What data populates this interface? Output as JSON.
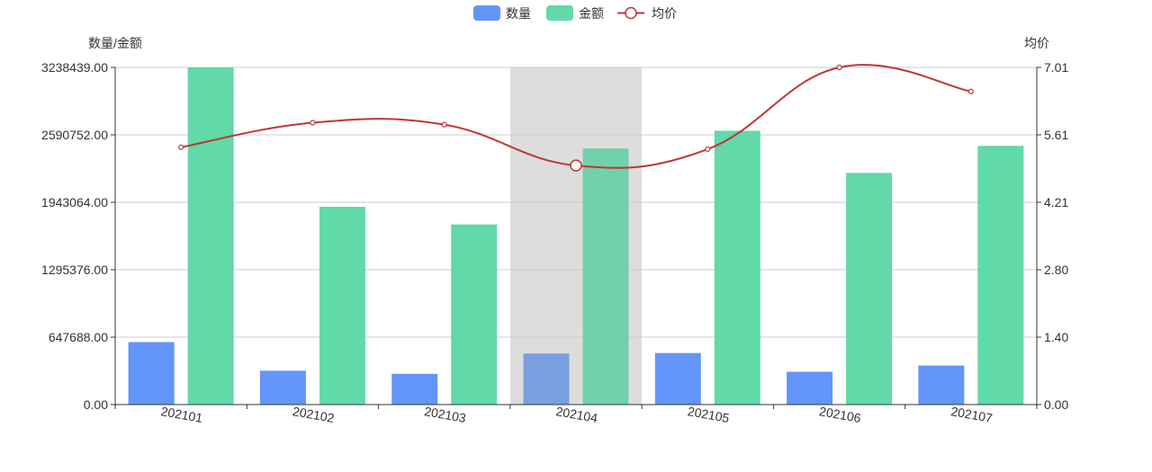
{
  "chart_data": {
    "type": "bar",
    "categories": [
      "202101",
      "202102",
      "202103",
      "202104",
      "202105",
      "202106",
      "202107"
    ],
    "series": [
      {
        "name": "数量",
        "type": "bar",
        "axis": "left",
        "color": "#6495fb",
        "values": [
          600000,
          325000,
          295000,
          490000,
          495000,
          315000,
          375000
        ]
      },
      {
        "name": "金额",
        "type": "bar",
        "axis": "left",
        "color": "#61d9a8",
        "values": [
          3238439,
          1900000,
          1730000,
          2460000,
          2630000,
          2225000,
          2485000
        ]
      },
      {
        "name": "均价",
        "type": "line",
        "axis": "right",
        "color": "#c23531",
        "smooth": true,
        "values": [
          5.35,
          5.86,
          5.82,
          4.97,
          5.31,
          7.01,
          6.51
        ]
      }
    ],
    "yAxisLeft": {
      "name": "数量/金额",
      "min": 0,
      "max": 3238439,
      "ticks": [
        "0.00",
        "647688.00",
        "1295376.00",
        "1943064.00",
        "2590752.00",
        "3238439.00"
      ]
    },
    "yAxisRight": {
      "name": "均价",
      "min": 0,
      "max": 7.01,
      "ticks": [
        "0.00",
        "1.40",
        "2.80",
        "4.21",
        "5.61",
        "7.01"
      ]
    },
    "highlightedCategory": "202104",
    "highlightColor": "#dddddd",
    "legend": {
      "position": "top-center",
      "items": [
        "数量",
        "金额",
        "均价"
      ]
    },
    "grid": true
  }
}
